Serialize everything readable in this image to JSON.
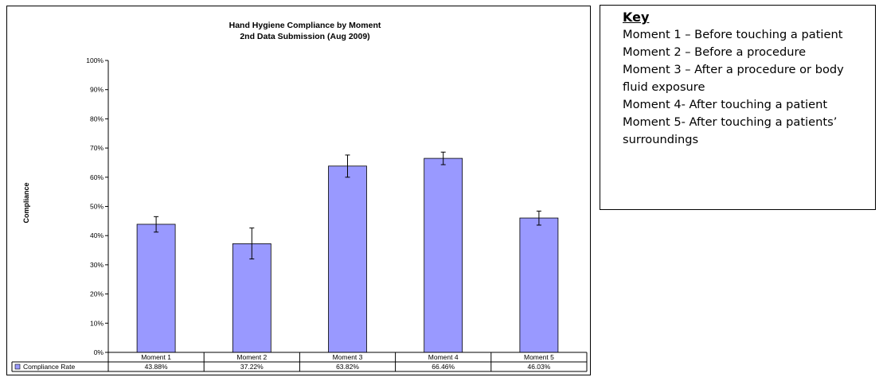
{
  "chart_data": {
    "type": "bar",
    "title": "Hand Hygiene Compliance by Moment",
    "subtitle": "2nd Data Submission (Aug 2009)",
    "ylabel": "Compliance",
    "categories": [
      "Moment 1",
      "Moment 2",
      "Moment 3",
      "Moment 4",
      "Moment 5"
    ],
    "series": [
      {
        "name": "Compliance Rate",
        "values": [
          43.88,
          37.22,
          63.82,
          66.46,
          46.03
        ],
        "value_labels": [
          "43.88%",
          "37.22%",
          "63.82%",
          "66.46%",
          "46.03%"
        ],
        "error_low": [
          41.2,
          32.0,
          60.0,
          64.3,
          43.6
        ],
        "error_high": [
          46.5,
          42.6,
          67.6,
          68.6,
          48.4
        ],
        "color": "#9999ff"
      }
    ],
    "ylim": [
      0,
      100
    ],
    "yticks": [
      "0%",
      "10%",
      "20%",
      "30%",
      "40%",
      "50%",
      "60%",
      "70%",
      "80%",
      "90%",
      "100%"
    ],
    "grid": false,
    "legend": "data-table"
  },
  "key": {
    "title": "Key",
    "items": [
      "Moment 1 – Before touching a patient",
      "Moment 2 – Before a procedure",
      "Moment 3 – After a procedure or body fluid exposure",
      "Moment 4- After touching a patient",
      "Moment 5- After touching a patients’ surroundings"
    ]
  }
}
